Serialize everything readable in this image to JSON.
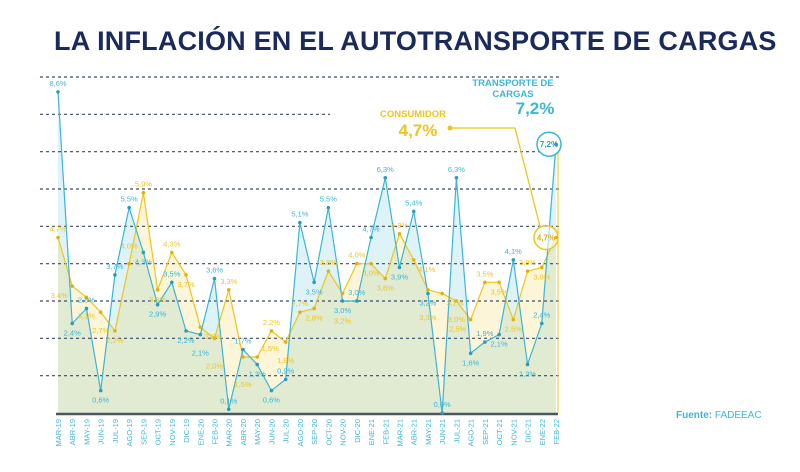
{
  "title": "LA INFLACIÓN EN EL AUTOTRANSPORTE DE CARGAS",
  "source_label": "Fuente:",
  "source_value": "FADEEAC",
  "chart_data": {
    "type": "area",
    "title": "LA INFLACIÓN EN EL AUTOTRANSPORTE DE CARGAS",
    "ylim": [
      0,
      9
    ],
    "grid": true,
    "categories": [
      "MAR-19",
      "ABR-19",
      "MAY-19",
      "JUN-19",
      "JUL-19",
      "AGO-19",
      "SEP-19",
      "OCT-19",
      "NOV-19",
      "DIC-19",
      "ENE-20",
      "FEB-20",
      "MAR-20",
      "ABR-20",
      "MAY-20",
      "JUN-20",
      "JUL-20",
      "AGO-20",
      "SEP-20",
      "OCT-20",
      "NOV-20",
      "DIC-20",
      "ENE-21",
      "FEB-21",
      "MAR-21",
      "ABR-21",
      "MAY-21",
      "JUN-21",
      "JUL-21",
      "AGO-21",
      "SEP-21",
      "OCT-21",
      "NOV-21",
      "DIC-21",
      "ENE-22",
      "FEB-22"
    ],
    "series": [
      {
        "name": "TRANSPORTE DE CARGAS",
        "color": "#3bb5d8",
        "last_label": "7,2%",
        "values": [
          8.6,
          2.4,
          2.8,
          0.6,
          3.7,
          5.5,
          4.3,
          2.9,
          3.5,
          2.2,
          2.1,
          3.6,
          0.1,
          1.7,
          1.3,
          0.6,
          0.9,
          5.1,
          3.5,
          5.5,
          3.0,
          3.0,
          4.7,
          6.3,
          3.9,
          5.4,
          3.2,
          0.0,
          6.3,
          1.6,
          1.9,
          2.1,
          4.1,
          1.3,
          2.4,
          7.2
        ]
      },
      {
        "name": "CONSUMIDOR",
        "color": "#f0c419",
        "last_label": "4,7%",
        "values": [
          4.7,
          3.4,
          3.1,
          2.7,
          2.2,
          4.0,
          5.9,
          3.3,
          4.3,
          3.7,
          2.3,
          2.0,
          3.3,
          1.5,
          1.5,
          2.2,
          1.9,
          2.7,
          2.8,
          3.8,
          3.2,
          4.0,
          4.0,
          3.6,
          4.8,
          4.1,
          3.3,
          3.2,
          3.0,
          2.5,
          3.5,
          3.5,
          2.5,
          3.8,
          3.9,
          4.7
        ]
      }
    ]
  }
}
